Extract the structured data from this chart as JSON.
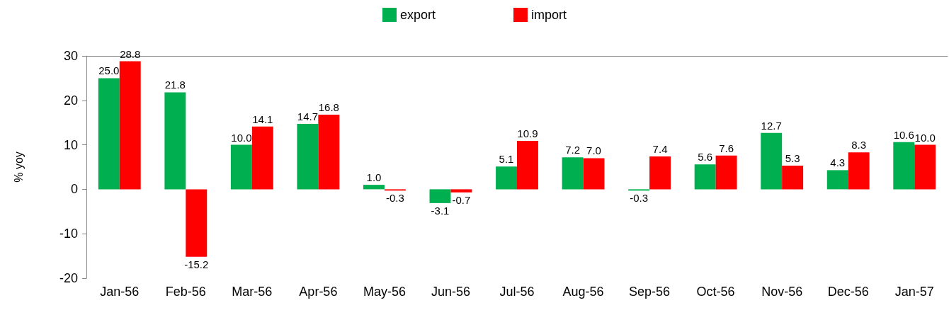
{
  "chart_data": {
    "type": "bar",
    "ylabel": "% yoy",
    "categories": [
      "Jan-56",
      "Feb-56",
      "Mar-56",
      "Apr-56",
      "May-56",
      "Jun-56",
      "Jul-56",
      "Aug-56",
      "Sep-56",
      "Oct-56",
      "Nov-56",
      "Dec-56",
      "Jan-57"
    ],
    "series": [
      {
        "name": "export",
        "color": "#00b050",
        "values": [
          25.0,
          21.8,
          10.0,
          14.7,
          1.0,
          -3.1,
          5.1,
          7.2,
          -0.3,
          5.6,
          12.7,
          4.3,
          10.6
        ],
        "value_labels": [
          "25.0",
          "21.8",
          "10.0",
          "14.7",
          "1.0",
          "-3.1",
          "5.1",
          "7.2",
          "-0.3",
          "5.6",
          "12.7",
          "4.3",
          "10.6"
        ]
      },
      {
        "name": "import",
        "color": "#ff0000",
        "values": [
          28.8,
          -15.2,
          14.1,
          16.8,
          -0.3,
          -0.7,
          10.9,
          7.0,
          7.4,
          7.6,
          5.3,
          8.3,
          10.0
        ],
        "value_labels": [
          "28.8",
          "-15.2",
          "14.1",
          "16.8",
          "-0.3",
          "-0.7",
          "10.9",
          "7.0",
          "7.4",
          "7.6",
          "5.3",
          "8.3",
          "10.0"
        ]
      }
    ],
    "ylim": [
      -20,
      30
    ],
    "yticks": [
      -20,
      -10,
      0,
      10,
      20,
      30
    ],
    "grid": false,
    "legend": "top"
  }
}
